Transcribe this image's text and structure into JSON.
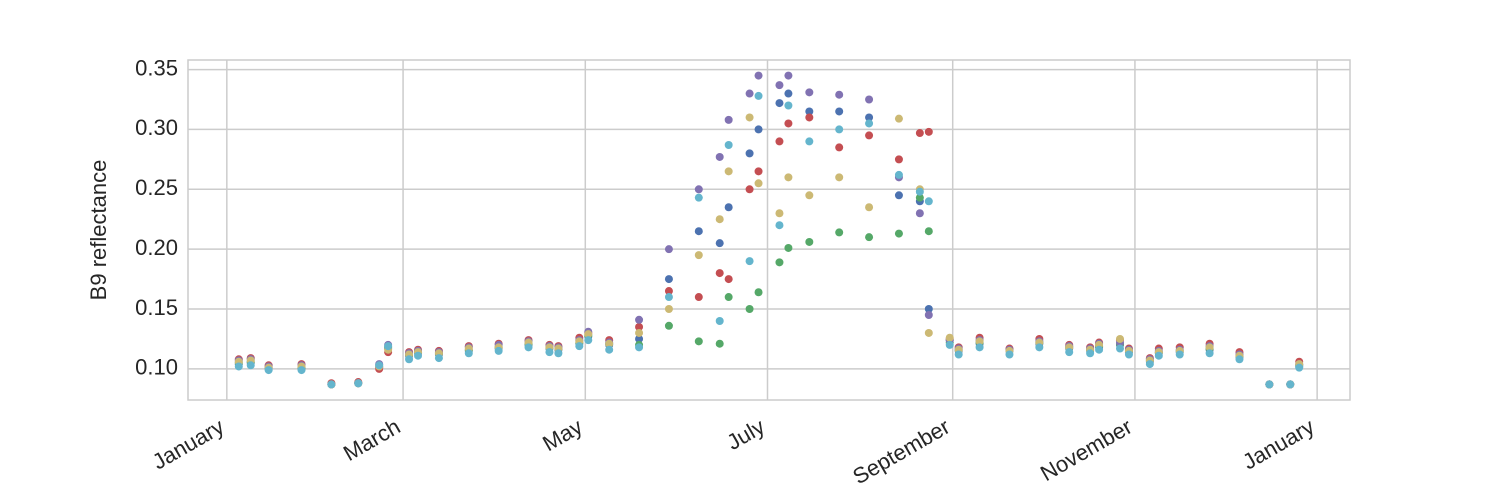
{
  "chart_data": {
    "type": "scatter",
    "y_label": "B9 reflectance",
    "grid": true,
    "x": [
      4,
      8,
      14,
      25,
      35,
      44,
      51,
      54,
      61,
      64,
      71,
      81,
      91,
      101,
      108,
      111,
      118,
      121,
      128,
      138,
      148,
      158,
      165,
      168,
      175,
      178,
      185,
      188,
      195,
      205,
      215,
      225,
      232,
      235,
      242,
      245,
      252,
      262,
      272,
      282,
      289,
      292,
      299,
      302,
      309,
      312,
      319,
      329,
      339,
      349,
      356,
      359
    ],
    "xlim": [
      -13,
      376
    ],
    "xticks": [
      {
        "value": 0,
        "label": "January"
      },
      {
        "value": 59,
        "label": "March"
      },
      {
        "value": 120,
        "label": "May"
      },
      {
        "value": 181,
        "label": "July"
      },
      {
        "value": 243,
        "label": "September"
      },
      {
        "value": 304,
        "label": "November"
      },
      {
        "value": 365,
        "label": "January"
      }
    ],
    "ylim": [
      0.074,
      0.358
    ],
    "yticks": [
      {
        "value": 0.1,
        "label": "0.10"
      },
      0.15,
      {
        "value": 0.2,
        "label": "0.20"
      },
      0.25,
      {
        "value": 0.3,
        "label": "0.30"
      },
      0.35
    ],
    "series": [
      {
        "color": "#4C72B0",
        "values": [
          0.104,
          0.105,
          0.1,
          0.1,
          0.087,
          0.088,
          0.101,
          0.117,
          0.111,
          0.113,
          0.112,
          0.115,
          0.117,
          0.12,
          0.117,
          0.116,
          0.121,
          0.127,
          0.12,
          0.125,
          0.175,
          0.215,
          0.205,
          0.235,
          0.28,
          0.3,
          0.322,
          0.33,
          0.315,
          0.315,
          0.31,
          0.245,
          0.24,
          0.15,
          0.124,
          0.115,
          0.121,
          0.115,
          0.121,
          0.117,
          0.115,
          0.118,
          0.12,
          0.114,
          0.106,
          0.113,
          0.114,
          0.116,
          0.11,
          0.087,
          0.087,
          0.102
        ]
      },
      {
        "color": "#55A868",
        "values": [
          0.105,
          0.106,
          0.101,
          0.101,
          0.087,
          0.088,
          0.102,
          0.118,
          0.112,
          0.114,
          0.113,
          0.116,
          0.118,
          0.121,
          0.118,
          0.117,
          0.122,
          0.128,
          0.121,
          0.12,
          0.136,
          0.123,
          0.121,
          0.16,
          0.15,
          0.164,
          0.189,
          0.201,
          0.206,
          0.214,
          0.21,
          0.213,
          0.243,
          0.215,
          0.122,
          0.116,
          0.122,
          0.116,
          0.122,
          0.118,
          0.116,
          0.119,
          0.121,
          0.115,
          0.107,
          0.114,
          0.115,
          0.117,
          0.111,
          0.087,
          0.087,
          0.103
        ]
      },
      {
        "color": "#C44E52",
        "values": [
          0.108,
          0.109,
          0.103,
          0.104,
          0.088,
          0.089,
          0.1,
          0.114,
          0.114,
          0.116,
          0.115,
          0.119,
          0.121,
          0.124,
          0.12,
          0.119,
          0.126,
          0.13,
          0.124,
          0.135,
          0.165,
          0.16,
          0.18,
          0.175,
          0.25,
          0.265,
          0.29,
          0.305,
          0.31,
          0.285,
          0.295,
          0.275,
          0.297,
          0.298,
          0.125,
          0.118,
          0.126,
          0.117,
          0.125,
          0.12,
          0.118,
          0.122,
          0.124,
          0.117,
          0.109,
          0.117,
          0.118,
          0.121,
          0.114,
          0.087,
          0.087,
          0.106
        ]
      },
      {
        "color": "#8172B2",
        "values": [
          0.107,
          0.108,
          0.102,
          0.103,
          0.087,
          0.088,
          0.104,
          0.12,
          0.113,
          0.115,
          0.114,
          0.118,
          0.12,
          0.123,
          0.119,
          0.118,
          0.124,
          0.131,
          0.122,
          0.141,
          0.2,
          0.25,
          0.277,
          0.308,
          0.33,
          0.345,
          0.337,
          0.345,
          0.331,
          0.329,
          0.325,
          0.26,
          0.23,
          0.145,
          0.124,
          0.117,
          0.124,
          0.116,
          0.123,
          0.119,
          0.117,
          0.121,
          0.122,
          0.116,
          0.108,
          0.115,
          0.116,
          0.119,
          0.112,
          0.087,
          0.087,
          0.104
        ]
      },
      {
        "color": "#CCB974",
        "values": [
          0.106,
          0.107,
          0.101,
          0.102,
          0.087,
          0.088,
          0.102,
          0.116,
          0.112,
          0.114,
          0.113,
          0.117,
          0.118,
          0.122,
          0.118,
          0.117,
          0.123,
          0.129,
          0.121,
          0.13,
          0.15,
          0.195,
          0.225,
          0.265,
          0.31,
          0.255,
          0.23,
          0.26,
          0.245,
          0.26,
          0.235,
          0.309,
          0.25,
          0.13,
          0.126,
          0.116,
          0.123,
          0.115,
          0.122,
          0.118,
          0.116,
          0.12,
          0.125,
          0.115,
          0.107,
          0.114,
          0.115,
          0.118,
          0.111,
          0.087,
          0.087,
          0.104
        ]
      },
      {
        "color": "#64B5CD",
        "values": [
          0.102,
          0.103,
          0.099,
          0.099,
          0.087,
          0.088,
          0.103,
          0.119,
          0.108,
          0.111,
          0.109,
          0.113,
          0.115,
          0.118,
          0.114,
          0.113,
          0.119,
          0.124,
          0.116,
          0.118,
          0.16,
          0.243,
          0.14,
          0.287,
          0.19,
          0.328,
          0.22,
          0.32,
          0.29,
          0.3,
          0.305,
          0.262,
          0.248,
          0.24,
          0.12,
          0.112,
          0.118,
          0.112,
          0.118,
          0.114,
          0.113,
          0.116,
          0.117,
          0.112,
          0.104,
          0.111,
          0.112,
          0.113,
          0.108,
          0.087,
          0.087,
          0.101
        ]
      }
    ]
  }
}
